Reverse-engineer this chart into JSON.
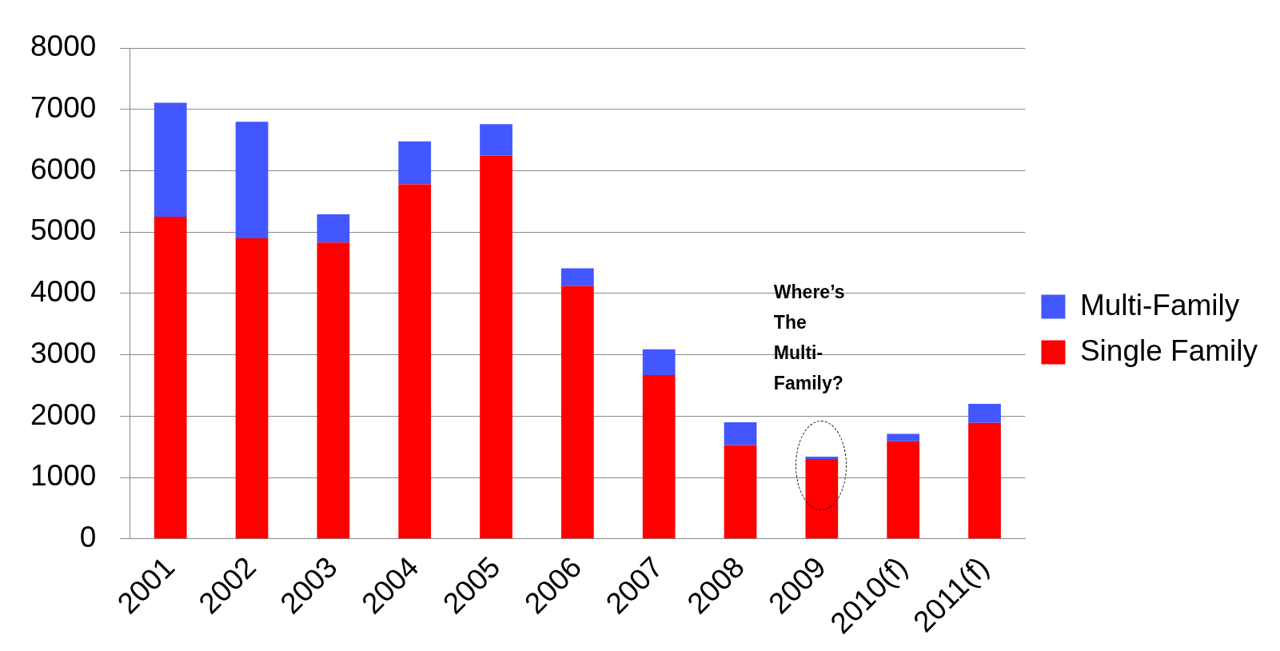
{
  "chart_data": {
    "type": "bar",
    "stacked": true,
    "categories": [
      "2001",
      "2002",
      "2003",
      "2004",
      "2005",
      "2006",
      "2007",
      "2008",
      "2009",
      "2010(f)",
      "2011(f)"
    ],
    "series": [
      {
        "name": "Single Family",
        "color": "#ff0000",
        "values": [
          5250,
          4900,
          4830,
          5780,
          6250,
          4120,
          2670,
          1530,
          1300,
          1590,
          1890
        ]
      },
      {
        "name": "Multi-Family",
        "color": "#4257ff",
        "values": [
          1860,
          1900,
          460,
          700,
          510,
          290,
          420,
          370,
          40,
          120,
          310
        ]
      }
    ],
    "ylim": [
      0,
      8000
    ],
    "yticks": [
      0,
      1000,
      2000,
      3000,
      4000,
      5000,
      6000,
      7000,
      8000
    ],
    "grid": "y",
    "legend": "right",
    "annotations": [
      "Where’s The Multi-Family?"
    ]
  }
}
